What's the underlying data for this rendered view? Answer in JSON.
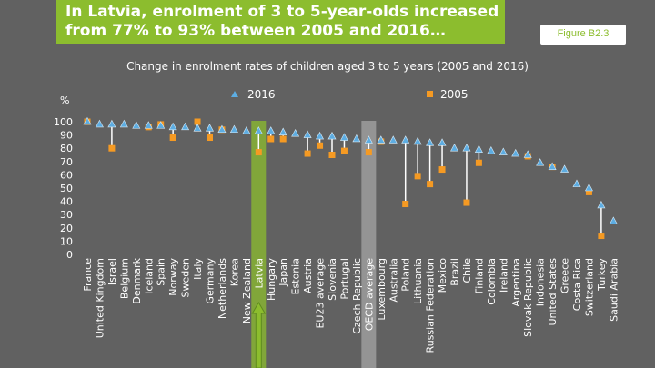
{
  "header": {
    "title": "In Latvia, enrolment of 3 to 5-year-olds increased\nfrom 77% to 93% between 2005 and 2016…",
    "figure_badge": "Figure B2.3"
  },
  "colors": {
    "background": "#616161",
    "title_bg": "#8cbd2e",
    "series_2016": "#5dade2",
    "series_2005": "#f59a23",
    "highlight_latvia": "#8cbd2e",
    "highlight_oecd": "#a6a6a6"
  },
  "chart_data": {
    "type": "dot",
    "title": "Change in enrolment rates of children aged 3 to 5 years (2005 and 2016)",
    "ylabel": "%",
    "ylim": [
      0,
      100
    ],
    "yticks": [
      0,
      10,
      20,
      30,
      40,
      50,
      60,
      70,
      80,
      90,
      100
    ],
    "legend": [
      "2016",
      "2005"
    ],
    "legend_position": "top",
    "highlighted": [
      "Latvia",
      "OECD average"
    ],
    "arrow_marks": "Latvia",
    "categories": [
      "France",
      "United Kingdom",
      "Israel",
      "Belgium",
      "Denmark",
      "Iceland",
      "Spain",
      "Norway",
      "Sweden",
      "Italy",
      "Germany",
      "Netherlands",
      "Korea",
      "New Zealand",
      "Latvia",
      "Hungary",
      "Japan",
      "Estonia",
      "Austria",
      "EU23 average",
      "Slovenia",
      "Portugal",
      "Czech Republic",
      "OECD average",
      "Luxembourg",
      "Australia",
      "Poland",
      "Lithuania",
      "Russian Federation",
      "Mexico",
      "Brazil",
      "Chile",
      "Finland",
      "Colombia",
      "Ireland",
      "Argentina",
      "Slovak Republic",
      "Indonesia",
      "United States",
      "Greece",
      "Costa Rica",
      "Switzerland",
      "Turkey",
      "Saudi Arabia"
    ],
    "series": [
      {
        "name": "2016",
        "marker": "triangle",
        "values": [
          100,
          98,
          98,
          98,
          97,
          97,
          97,
          96,
          96,
          95,
          95,
          94,
          94,
          93,
          93,
          93,
          92,
          91,
          90,
          89,
          89,
          88,
          87,
          86,
          86,
          86,
          86,
          85,
          84,
          84,
          80,
          80,
          79,
          78,
          77,
          76,
          75,
          69,
          66,
          64,
          53,
          50,
          37,
          25
        ]
      },
      {
        "name": "2005",
        "marker": "square",
        "values": [
          100,
          null,
          80,
          null,
          null,
          96,
          98,
          88,
          null,
          100,
          88,
          94,
          null,
          null,
          77,
          87,
          87,
          null,
          76,
          82,
          75,
          78,
          null,
          77,
          85,
          null,
          38,
          59,
          53,
          64,
          null,
          39,
          69,
          null,
          null,
          null,
          74,
          null,
          66,
          null,
          null,
          47,
          14,
          null
        ]
      }
    ]
  }
}
